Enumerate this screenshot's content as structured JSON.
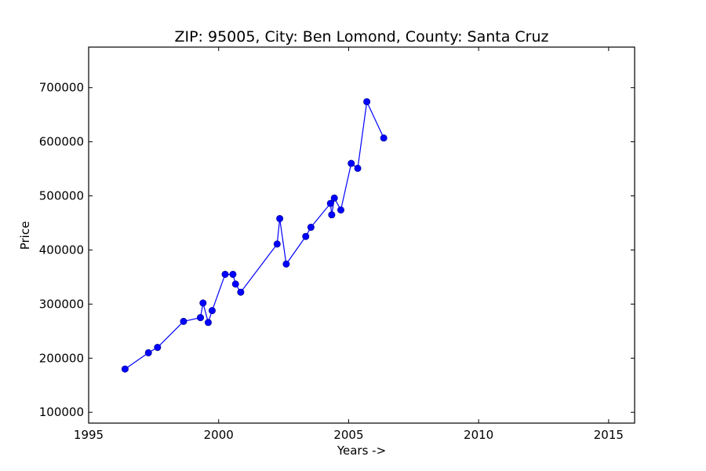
{
  "chart_data": {
    "type": "line",
    "title": "ZIP: 95005, City: Ben Lomond, County: Santa Cruz",
    "xlabel": "Years ->",
    "ylabel": "Price",
    "xlim": [
      1995,
      2016
    ],
    "ylim": [
      80000,
      775000
    ],
    "xticks": [
      1995,
      2000,
      2005,
      2010,
      2015
    ],
    "yticks": [
      100000,
      200000,
      300000,
      400000,
      500000,
      600000,
      700000
    ],
    "grid": false,
    "colors": {
      "line": "#0000ff",
      "marker": "#0000ff"
    },
    "series": [
      {
        "x": [
          1996.4,
          1997.3,
          1997.65,
          1998.65,
          1999.3,
          1999.4,
          1999.6,
          1999.75,
          2000.25,
          2000.55,
          2000.65,
          2000.85,
          2002.25,
          2002.35,
          2002.6,
          2003.35,
          2003.55,
          2004.3,
          2004.35,
          2004.45,
          2004.7,
          2005.1,
          2005.35,
          2005.7,
          2006.35
        ],
        "y": [
          180000,
          210000,
          220000,
          268000,
          275000,
          302000,
          266000,
          288000,
          355000,
          355000,
          337000,
          322000,
          411000,
          458000,
          374000,
          425000,
          442000,
          486000,
          465000,
          496000,
          474000,
          560000,
          551000,
          674000,
          607000
        ]
      }
    ]
  }
}
